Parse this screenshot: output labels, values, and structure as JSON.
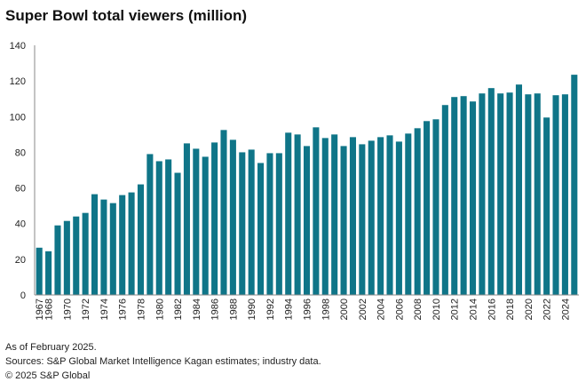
{
  "colors": {
    "bar": "#0f7588",
    "axis": "#8a8a8a",
    "text": "#222222"
  },
  "footnotes": {
    "note": "As of February 2025.",
    "sources": "Sources: S&P Global Market Intelligence Kagan estimates; industry data.",
    "copyright": "© 2025 S&P Global"
  },
  "chart_data": {
    "type": "bar",
    "title": "Super Bowl total viewers (million)",
    "xlabel": "",
    "ylabel": "",
    "ylim": [
      0,
      140
    ],
    "yticks": [
      0,
      20,
      40,
      60,
      80,
      100,
      120,
      140
    ],
    "grid": false,
    "categories": [
      1967,
      1968,
      1969,
      1970,
      1971,
      1972,
      1973,
      1974,
      1975,
      1976,
      1977,
      1978,
      1979,
      1980,
      1981,
      1982,
      1983,
      1984,
      1985,
      1986,
      1987,
      1988,
      1989,
      1990,
      1991,
      1992,
      1993,
      1994,
      1995,
      1996,
      1997,
      1998,
      1999,
      2000,
      2001,
      2002,
      2003,
      2004,
      2005,
      2006,
      2007,
      2008,
      2009,
      2010,
      2011,
      2012,
      2013,
      2014,
      2015,
      2016,
      2017,
      2018,
      2019,
      2020,
      2021,
      2022,
      2023,
      2024,
      2025
    ],
    "category_labels_shown": [
      "1967",
      "1968",
      "1970",
      "1972",
      "1974",
      "1976",
      "1978",
      "1980",
      "1982",
      "1984",
      "1986",
      "1988",
      "1990",
      "1992",
      "1994",
      "1996",
      "1998",
      "2000",
      "2002",
      "2004",
      "2006",
      "2008",
      "2010",
      "2012",
      "2014",
      "2016",
      "2018",
      "2020",
      "2022",
      "2024"
    ],
    "values": [
      26.5,
      24.5,
      39,
      41.5,
      44,
      46,
      56.5,
      53.5,
      51.5,
      56,
      57.5,
      62,
      79,
      75,
      76,
      68.5,
      85,
      82,
      77.5,
      85.5,
      92.5,
      87,
      80,
      81.5,
      74,
      79.5,
      79.5,
      91,
      90,
      83.5,
      94,
      88,
      90,
      83.5,
      88.5,
      84.5,
      86.5,
      88.5,
      89.5,
      86,
      90.5,
      93.5,
      97.5,
      98.5,
      106.5,
      111,
      111.5,
      108.5,
      113,
      116,
      113,
      113.5,
      118,
      112.5,
      113,
      99.5,
      112,
      112.5,
      123.5
    ]
  }
}
